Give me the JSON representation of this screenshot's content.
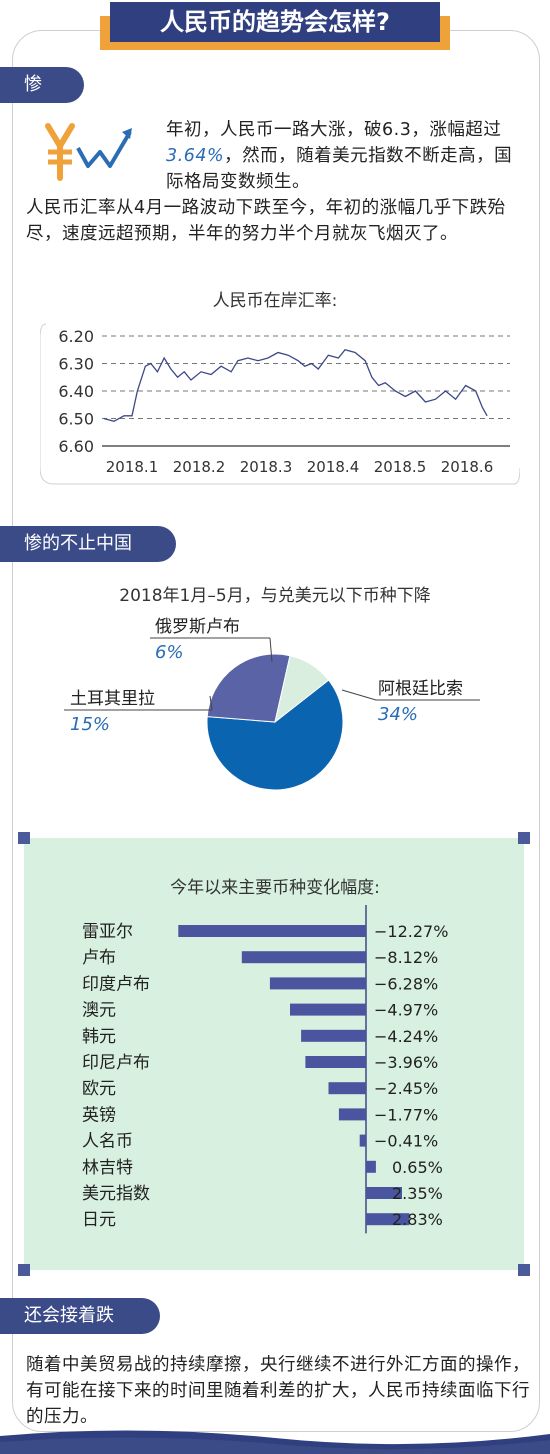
{
  "title": "人民币的趋势会怎样?",
  "sections": {
    "s1": "惨",
    "s2": "惨的不止中国",
    "s3": "还会接着跌"
  },
  "intro": {
    "before_hl": "年初，人民币一路大涨，破6.3，涨幅超过",
    "highlight": "3.64%",
    "after_hl": "，然而，随着美元指数不断走高，国际格局变数频生。人民币汇率从4月一路波动下跌至今，年初的涨幅几乎下跌殆尽，速度远超预期，半年的努力半个月就灰飞烟灭了。"
  },
  "conclusion": "随着中美贸易战的持续摩擦，央行继续不进行外汇方面的操作，有可能在接下来的时间里随着利差的扩大，人民币持续面临下行的压力。",
  "icon": "yuan-rising-chart-icon",
  "colors": {
    "navy": "#3b4b88",
    "orange": "#f0a23a",
    "pie_dark": "#0a64b0",
    "pie_purple": "#5a63a6",
    "pie_light": "#d9eedf",
    "bar": "#4a55a0",
    "green_bg": "#d8f0df",
    "highlight": "#2a6db5"
  },
  "chart_data": [
    {
      "type": "line",
      "title": "人民币在岸汇率:",
      "x_ticks": [
        "2018.1",
        "2018.2",
        "2018.3",
        "2018.4",
        "2018.5",
        "2018.6"
      ],
      "y_ticks": [
        "6.20",
        "6.30",
        "6.40",
        "6.50",
        "6.60"
      ],
      "ylim": [
        6.6,
        6.2
      ],
      "y_inverted": true,
      "grid": "dashed horizontal",
      "series": [
        {
          "x": [
            0.0,
            0.15,
            0.3,
            0.42,
            0.5,
            0.62,
            0.7,
            0.8,
            0.9,
            1.0,
            1.1,
            1.2,
            1.3,
            1.45,
            1.6,
            1.75,
            1.9,
            2.0,
            2.15,
            2.3,
            2.45,
            2.6,
            2.75,
            2.9,
            3.0,
            3.1,
            3.2,
            3.35,
            3.5,
            3.6,
            3.75,
            3.9,
            4.0,
            4.1,
            4.2,
            4.35,
            4.5,
            4.65,
            4.8,
            4.95,
            5.1,
            5.25,
            5.4,
            5.55,
            5.65,
            5.72
          ],
          "values": [
            6.5,
            6.51,
            6.49,
            6.49,
            6.4,
            6.31,
            6.3,
            6.33,
            6.28,
            6.32,
            6.35,
            6.33,
            6.36,
            6.33,
            6.34,
            6.31,
            6.33,
            6.29,
            6.28,
            6.29,
            6.28,
            6.26,
            6.27,
            6.29,
            6.31,
            6.3,
            6.32,
            6.27,
            6.28,
            6.25,
            6.26,
            6.29,
            6.35,
            6.38,
            6.37,
            6.4,
            6.42,
            6.4,
            6.44,
            6.43,
            6.4,
            6.43,
            6.38,
            6.4,
            6.46,
            6.49
          ]
        }
      ]
    },
    {
      "type": "pie",
      "title": "2018年1月–5月，与兑美元以下币种下降",
      "slices": [
        {
          "label": "阿根廷比索",
          "value": 34,
          "display": "34%"
        },
        {
          "label": "土耳其里拉",
          "value": 15,
          "display": "15%"
        },
        {
          "label": "俄罗斯卢布",
          "value": 6,
          "display": "6%"
        }
      ]
    },
    {
      "type": "bar",
      "orientation": "horizontal",
      "title": "今年以来主要币种变化幅度:",
      "categories": [
        "雷亚尔",
        "卢布",
        "印度卢布",
        "澳元",
        "韩元",
        "印尼卢布",
        "欧元",
        "英镑",
        "人名币",
        "林吉特",
        "美元指数",
        "日元"
      ],
      "values": [
        -12.27,
        -8.12,
        -6.28,
        -4.97,
        -4.24,
        -3.96,
        -2.45,
        -1.77,
        -0.41,
        0.65,
        2.35,
        2.83
      ],
      "labels": [
        "−12.27%",
        "−8.12%",
        "−6.28%",
        "−4.97%",
        "−4.24%",
        "−3.96%",
        "−2.45%",
        "−1.77%",
        "−0.41%",
        "0.65%",
        "2.35%",
        "2.83%"
      ]
    }
  ]
}
